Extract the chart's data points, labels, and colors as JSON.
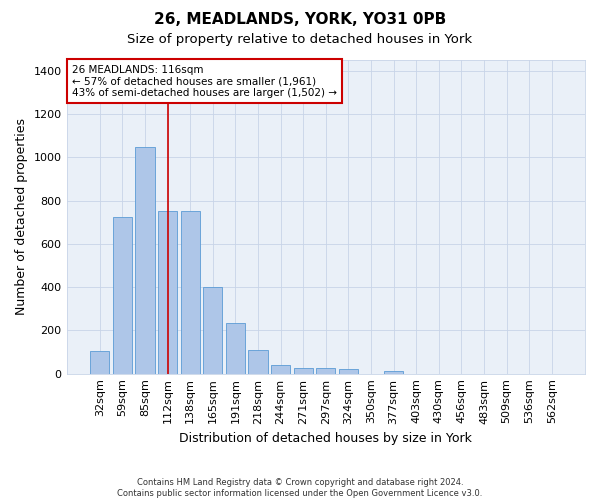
{
  "title1": "26, MEADLANDS, YORK, YO31 0PB",
  "title2": "Size of property relative to detached houses in York",
  "xlabel": "Distribution of detached houses by size in York",
  "ylabel": "Number of detached properties",
  "bar_labels": [
    "32sqm",
    "59sqm",
    "85sqm",
    "112sqm",
    "138sqm",
    "165sqm",
    "191sqm",
    "218sqm",
    "244sqm",
    "271sqm",
    "297sqm",
    "324sqm",
    "350sqm",
    "377sqm",
    "403sqm",
    "430sqm",
    "456sqm",
    "483sqm",
    "509sqm",
    "536sqm",
    "562sqm"
  ],
  "bar_values": [
    105,
    725,
    1050,
    750,
    750,
    400,
    235,
    110,
    42,
    27,
    27,
    20,
    0,
    14,
    0,
    0,
    0,
    0,
    0,
    0,
    0
  ],
  "bar_color": "#aec6e8",
  "bar_edge_color": "#5b9bd5",
  "vline_x_index": 3,
  "vline_color": "#cc0000",
  "annotation_text": "26 MEADLANDS: 116sqm\n← 57% of detached houses are smaller (1,961)\n43% of semi-detached houses are larger (1,502) →",
  "annotation_box_color": "#ffffff",
  "annotation_box_edge_color": "#cc0000",
  "ylim": [
    0,
    1450
  ],
  "yticks": [
    0,
    200,
    400,
    600,
    800,
    1000,
    1200,
    1400
  ],
  "footnote": "Contains HM Land Registry data © Crown copyright and database right 2024.\nContains public sector information licensed under the Open Government Licence v3.0.",
  "plot_bg_color": "#eaf0f8",
  "title1_fontsize": 11,
  "title2_fontsize": 9.5,
  "xlabel_fontsize": 9,
  "ylabel_fontsize": 9,
  "tick_fontsize": 8,
  "annotation_fontsize": 7.5
}
